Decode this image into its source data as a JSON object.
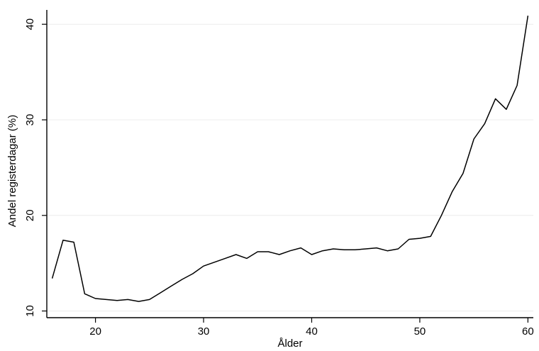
{
  "chart_data": {
    "type": "line",
    "xlabel": "Ålder",
    "ylabel": "Andel registerdagar (%)",
    "xlim": [
      15.5,
      60.5
    ],
    "ylim": [
      9.3,
      41.5
    ],
    "xticks": [
      20,
      30,
      40,
      50,
      60
    ],
    "yticks": [
      10,
      20,
      30,
      40
    ],
    "grid": true,
    "series": [
      {
        "x": [
          16,
          17,
          18,
          19,
          20,
          21,
          22,
          23,
          24,
          25,
          26,
          27,
          28,
          29,
          30,
          31,
          32,
          33,
          34,
          35,
          36,
          37,
          38,
          39,
          40,
          41,
          42,
          43,
          44,
          45,
          46,
          47,
          48,
          49,
          50,
          51,
          52,
          53,
          54,
          55,
          56,
          57,
          58,
          59,
          60
        ],
        "y": [
          13.4,
          17.4,
          17.2,
          11.8,
          11.3,
          11.2,
          11.1,
          11.2,
          11.0,
          11.2,
          11.9,
          12.6,
          13.3,
          13.9,
          14.7,
          15.1,
          15.5,
          15.9,
          15.5,
          16.2,
          16.2,
          15.9,
          16.3,
          16.6,
          15.9,
          16.3,
          16.5,
          16.4,
          16.4,
          16.5,
          16.6,
          16.3,
          16.5,
          17.5,
          17.6,
          17.8,
          20.0,
          22.5,
          24.4,
          28.0,
          29.6,
          32.2,
          31.1,
          33.6,
          40.9
        ]
      }
    ]
  }
}
